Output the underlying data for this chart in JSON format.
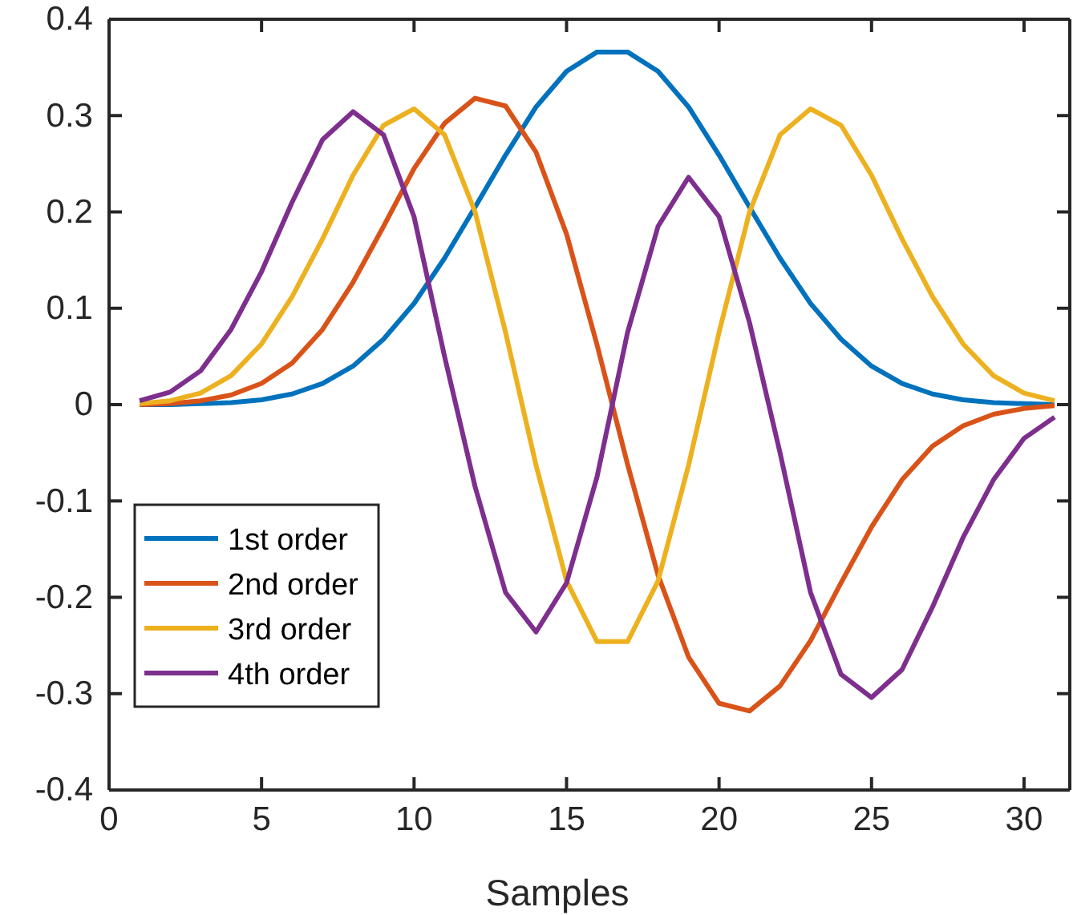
{
  "chart_data": {
    "type": "line",
    "xlabel": "Samples",
    "x": [
      1,
      2,
      3,
      4,
      5,
      6,
      7,
      8,
      9,
      10,
      11,
      12,
      13,
      14,
      15,
      16,
      17,
      18,
      19,
      20,
      21,
      22,
      23,
      24,
      25,
      26,
      27,
      28,
      29,
      30,
      31
    ],
    "series": [
      {
        "name": "1st order",
        "color": "#0072bd",
        "values": [
          0,
          0,
          0.001,
          0.002,
          0.005,
          0.011,
          0.022,
          0.04,
          0.068,
          0.105,
          0.152,
          0.205,
          0.259,
          0.309,
          0.346,
          0.366,
          0.366,
          0.346,
          0.309,
          0.259,
          0.205,
          0.152,
          0.105,
          0.068,
          0.04,
          0.022,
          0.011,
          0.005,
          0.002,
          0.001,
          0
        ]
      },
      {
        "name": "2nd order",
        "color": "#d95319",
        "values": [
          0,
          0.001,
          0.004,
          0.01,
          0.022,
          0.043,
          0.078,
          0.127,
          0.185,
          0.245,
          0.292,
          0.318,
          0.31,
          0.262,
          0.177,
          0.062,
          -0.062,
          -0.177,
          -0.262,
          -0.31,
          -0.318,
          -0.292,
          -0.245,
          -0.185,
          -0.127,
          -0.078,
          -0.043,
          -0.022,
          -0.01,
          -0.004,
          -0.001
        ]
      },
      {
        "name": "3rd order",
        "color": "#edb120",
        "values": [
          0.001,
          0.004,
          0.012,
          0.03,
          0.063,
          0.112,
          0.172,
          0.238,
          0.29,
          0.307,
          0.28,
          0.2,
          0.075,
          -0.063,
          -0.183,
          -0.246,
          -0.246,
          -0.183,
          -0.063,
          0.075,
          0.2,
          0.28,
          0.307,
          0.29,
          0.238,
          0.172,
          0.112,
          0.063,
          0.03,
          0.012,
          0.004
        ]
      },
      {
        "name": "4th order",
        "color": "#7e2f8e",
        "values": [
          0.004,
          0.013,
          0.035,
          0.078,
          0.138,
          0.21,
          0.275,
          0.304,
          0.28,
          0.195,
          0.05,
          -0.085,
          -0.195,
          -0.236,
          -0.185,
          -0.075,
          0.075,
          0.185,
          0.236,
          0.195,
          0.085,
          -0.05,
          -0.195,
          -0.28,
          -0.304,
          -0.275,
          -0.21,
          -0.138,
          -0.078,
          -0.035,
          -0.013
        ]
      }
    ],
    "xlim": [
      0,
      31.5
    ],
    "xticks": [
      0,
      5,
      10,
      15,
      20,
      25,
      30
    ],
    "ylim": [
      -0.4,
      0.4
    ],
    "yticks": [
      -0.4,
      -0.3,
      -0.2,
      -0.1,
      0,
      0.1,
      0.2,
      0.3,
      0.4
    ],
    "legend": "bottom left",
    "grid": false,
    "line_style": "solid",
    "marker": "none"
  }
}
